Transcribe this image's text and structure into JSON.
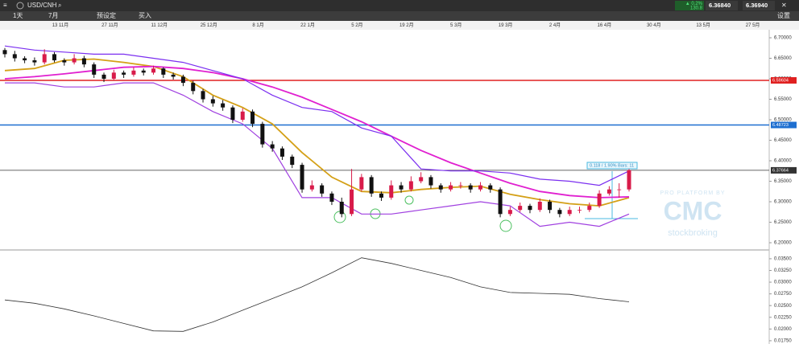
{
  "toolbar": {
    "symbol": "USD/CNH",
    "change_pct": "▲ 0.2%",
    "change_pts": "130.8",
    "sell": "6.36840",
    "buy": "6.36940",
    "interval": "1天",
    "range": "7月",
    "preset": "预设定",
    "order": "买入",
    "settings": "设置"
  },
  "watermark": {
    "line1": "PRO PLATFORM BY",
    "line2": "CMC",
    "line3": "stockbroking"
  },
  "chart_data": {
    "type": "candlestick",
    "date_labels": [
      "13 11月",
      "27 11月",
      "11 12月",
      "25 12月",
      "8 1月",
      "22 1月",
      "5 2月",
      "19 2月",
      "5 3月",
      "19 3月",
      "2 4月",
      "16 4月",
      "30 4月",
      "13 5月",
      "27 5月"
    ],
    "up_color": "#d81b4a",
    "down_color": "#111111",
    "candles": [
      [
        6.67,
        6.675,
        6.652,
        6.66
      ],
      [
        6.66,
        6.668,
        6.642,
        6.65
      ],
      [
        6.65,
        6.655,
        6.638,
        6.645
      ],
      [
        6.645,
        6.652,
        6.632,
        6.64
      ],
      [
        6.64,
        6.672,
        6.635,
        6.66
      ],
      [
        6.66,
        6.665,
        6.64,
        6.645
      ],
      [
        6.645,
        6.65,
        6.632,
        6.64
      ],
      [
        6.64,
        6.66,
        6.635,
        6.65
      ],
      [
        6.65,
        6.656,
        6.628,
        6.635
      ],
      [
        6.635,
        6.64,
        6.602,
        6.61
      ],
      [
        6.61,
        6.615,
        6.592,
        6.6
      ],
      [
        6.6,
        6.622,
        6.596,
        6.615
      ],
      [
        6.615,
        6.62,
        6.602,
        6.61
      ],
      [
        6.61,
        6.628,
        6.605,
        6.62
      ],
      [
        6.62,
        6.625,
        6.608,
        6.615
      ],
      [
        6.615,
        6.632,
        6.61,
        6.625
      ],
      [
        6.625,
        6.628,
        6.602,
        6.61
      ],
      [
        6.61,
        6.615,
        6.598,
        6.605
      ],
      [
        6.605,
        6.61,
        6.582,
        6.59
      ],
      [
        6.59,
        6.595,
        6.562,
        6.57
      ],
      [
        6.57,
        6.575,
        6.542,
        6.55
      ],
      [
        6.55,
        6.558,
        6.532,
        6.54
      ],
      [
        6.54,
        6.548,
        6.522,
        6.53
      ],
      [
        6.53,
        6.535,
        6.492,
        6.5
      ],
      [
        6.5,
        6.528,
        6.495,
        6.52
      ],
      [
        6.52,
        6.525,
        6.482,
        6.49
      ],
      [
        6.49,
        6.495,
        6.432,
        6.44
      ],
      [
        6.44,
        6.448,
        6.422,
        6.43
      ],
      [
        6.43,
        6.435,
        6.402,
        6.41
      ],
      [
        6.41,
        6.415,
        6.382,
        6.39
      ],
      [
        6.39,
        6.395,
        6.322,
        6.33
      ],
      [
        6.33,
        6.352,
        6.325,
        6.34
      ],
      [
        6.34,
        6.345,
        6.312,
        6.32
      ],
      [
        6.32,
        6.325,
        6.292,
        6.3
      ],
      [
        6.3,
        6.31,
        6.262,
        6.27
      ],
      [
        6.27,
        6.38,
        6.265,
        6.33
      ],
      [
        6.33,
        6.368,
        6.325,
        6.36
      ],
      [
        6.36,
        6.365,
        6.312,
        6.32
      ],
      [
        6.32,
        6.325,
        6.302,
        6.31
      ],
      [
        6.31,
        6.352,
        6.305,
        6.34
      ],
      [
        6.34,
        6.348,
        6.322,
        6.33
      ],
      [
        6.33,
        6.362,
        6.325,
        6.35
      ],
      [
        6.35,
        6.372,
        6.345,
        6.36
      ],
      [
        6.36,
        6.365,
        6.332,
        6.34
      ],
      [
        6.34,
        6.345,
        6.322,
        6.33
      ],
      [
        6.33,
        6.348,
        6.325,
        6.34
      ],
      [
        6.34,
        6.348,
        6.332,
        6.34
      ],
      [
        6.34,
        6.345,
        6.322,
        6.33
      ],
      [
        6.33,
        6.348,
        6.325,
        6.34
      ],
      [
        6.34,
        6.345,
        6.322,
        6.33
      ],
      [
        6.33,
        6.335,
        6.262,
        6.27
      ],
      [
        6.27,
        6.288,
        6.265,
        6.28
      ],
      [
        6.28,
        6.298,
        6.275,
        6.29
      ],
      [
        6.29,
        6.295,
        6.272,
        6.28
      ],
      [
        6.28,
        6.308,
        6.275,
        6.3
      ],
      [
        6.3,
        6.305,
        6.272,
        6.28
      ],
      [
        6.28,
        6.285,
        6.262,
        6.27
      ],
      [
        6.27,
        6.288,
        6.265,
        6.28
      ],
      [
        6.28,
        6.288,
        6.272,
        6.28
      ],
      [
        6.28,
        6.298,
        6.275,
        6.29
      ],
      [
        6.29,
        6.328,
        6.285,
        6.32
      ],
      [
        6.32,
        6.338,
        6.315,
        6.33
      ],
      [
        6.33,
        6.345,
        6.31,
        6.33
      ],
      [
        6.33,
        6.38,
        6.325,
        6.377
      ]
    ],
    "indicators": [
      {
        "color": "#d4a017",
        "values": [
          6.62,
          6.625,
          6.645,
          6.648,
          6.64,
          6.63,
          6.605,
          6.56,
          6.53,
          6.49,
          6.42,
          6.36,
          6.325,
          6.322,
          6.33,
          6.335,
          6.338,
          6.318,
          6.305,
          6.295,
          6.29,
          6.31
        ]
      },
      {
        "color": "#e020d0",
        "values": [
          6.6,
          6.605,
          6.612,
          6.62,
          6.628,
          6.63,
          6.625,
          6.615,
          6.6,
          6.58,
          6.555,
          6.525,
          6.495,
          6.46,
          6.425,
          6.395,
          6.37,
          6.345,
          6.325,
          6.315,
          6.31,
          6.312
        ]
      },
      {
        "color": "#7b2ff0",
        "values": [
          6.68,
          6.67,
          6.665,
          6.66,
          6.66,
          6.65,
          6.64,
          6.62,
          6.6,
          6.56,
          6.53,
          6.52,
          6.48,
          6.46,
          6.38,
          6.375,
          6.375,
          6.37,
          6.355,
          6.35,
          6.34,
          6.375
        ]
      },
      {
        "color": "#a040e0",
        "values": [
          6.59,
          6.59,
          6.58,
          6.58,
          6.59,
          6.59,
          6.56,
          6.52,
          6.49,
          6.43,
          6.31,
          6.31,
          6.27,
          6.27,
          6.28,
          6.29,
          6.3,
          6.29,
          6.24,
          6.25,
          6.24,
          6.27
        ]
      }
    ],
    "levels": [
      {
        "value": 6.59604,
        "color": "#e02020"
      },
      {
        "value": 6.48723,
        "color": "#1e6fd0"
      },
      {
        "value": 6.37664,
        "color": "#333333"
      }
    ],
    "annotation": "0.118 / 1.90%  Bars: 11",
    "ylim": [
      6.1843,
      6.7196
    ],
    "yticks": [
      {
        "value": 6.7,
        "label": "6.70000"
      },
      {
        "value": 6.65,
        "label": "6.65000"
      },
      {
        "value": 6.6,
        "label": "6.60000"
      },
      {
        "value": 6.55,
        "label": "6.55000"
      },
      {
        "value": 6.5,
        "label": "6.50000"
      },
      {
        "value": 6.45,
        "label": "6.45000"
      },
      {
        "value": 6.4,
        "label": "6.40000"
      },
      {
        "value": 6.35,
        "label": "6.35000"
      },
      {
        "value": 6.3,
        "label": "6.30000"
      },
      {
        "value": 6.25,
        "label": "6.25000"
      },
      {
        "value": 6.2,
        "label": "6.20000"
      }
    ],
    "oscillator": {
      "color": "#333333",
      "values": [
        0.0262,
        0.0255,
        0.0243,
        0.0228,
        0.0212,
        0.0196,
        0.0195,
        0.0215,
        0.024,
        0.0265,
        0.029,
        0.032,
        0.0352,
        0.034,
        0.0325,
        0.031,
        0.029,
        0.0278,
        0.0276,
        0.0274,
        0.0265,
        0.0258
      ],
      "ylim": [
        0.0168,
        0.0367
      ],
      "yticks": [
        {
          "value": 0.035,
          "label": "0.03500"
        },
        {
          "value": 0.0325,
          "label": "0.03250"
        },
        {
          "value": 0.03,
          "label": "0.03000"
        },
        {
          "value": 0.0275,
          "label": "0.02750"
        },
        {
          "value": 0.025,
          "label": "0.02500"
        },
        {
          "value": 0.0225,
          "label": "0.02250"
        },
        {
          "value": 0.02,
          "label": "0.02000"
        },
        {
          "value": 0.0175,
          "label": "0.01750"
        }
      ]
    }
  }
}
